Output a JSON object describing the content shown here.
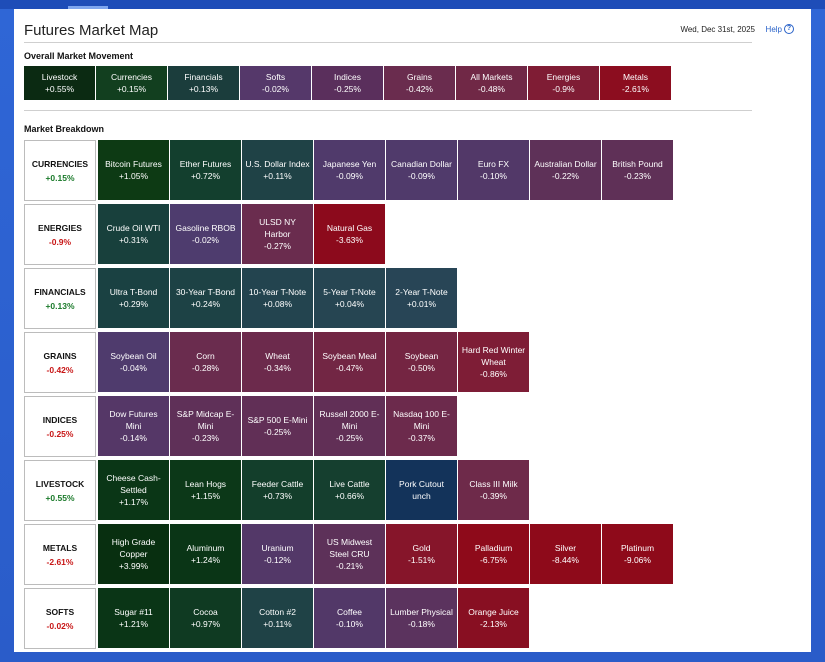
{
  "header": {
    "title": "Futures Market Map",
    "date": "Wed, Dec 31st, 2025",
    "help_label": "Help"
  },
  "overall": {
    "label": "Overall Market Movement",
    "tiles": [
      {
        "name": "Livestock",
        "change": "+0.55%",
        "color": "#0b2a12"
      },
      {
        "name": "Currencies",
        "change": "+0.15%",
        "color": "#123f1f"
      },
      {
        "name": "Financials",
        "change": "+0.13%",
        "color": "#1b3d3c"
      },
      {
        "name": "Softs",
        "change": "-0.02%",
        "color": "#55386a"
      },
      {
        "name": "Indices",
        "change": "-0.25%",
        "color": "#5a2f5c"
      },
      {
        "name": "Grains",
        "change": "-0.42%",
        "color": "#6a2c4e"
      },
      {
        "name": "All Markets",
        "change": "-0.48%",
        "color": "#702846"
      },
      {
        "name": "Energies",
        "change": "-0.9%",
        "color": "#7f1c34"
      },
      {
        "name": "Metals",
        "change": "-2.61%",
        "color": "#8c0d1f"
      }
    ]
  },
  "breakdown": {
    "label": "Market Breakdown",
    "rows": [
      {
        "name": "CURRENCIES",
        "change": "+0.15%",
        "sign": "pos",
        "tiles": [
          {
            "name": "Bitcoin Futures",
            "change": "+1.05%",
            "color": "#0d3a14"
          },
          {
            "name": "Ether Futures",
            "change": "+0.72%",
            "color": "#133f2e"
          },
          {
            "name": "U.S. Dollar Index",
            "change": "+0.11%",
            "color": "#1f4246"
          },
          {
            "name": "Japanese Yen",
            "change": "-0.09%",
            "color": "#503a6b"
          },
          {
            "name": "Canadian Dollar",
            "change": "-0.09%",
            "color": "#503a6b"
          },
          {
            "name": "Euro FX",
            "change": "-0.10%",
            "color": "#523868"
          },
          {
            "name": "Australian Dollar",
            "change": "-0.22%",
            "color": "#5e3158"
          },
          {
            "name": "British Pound",
            "change": "-0.23%",
            "color": "#5f3057"
          }
        ]
      },
      {
        "name": "ENERGIES",
        "change": "-0.9%",
        "sign": "neg",
        "tiles": [
          {
            "name": "Crude Oil WTI",
            "change": "+0.31%",
            "color": "#18403c"
          },
          {
            "name": "Gasoline RBOB",
            "change": "-0.02%",
            "color": "#4e3c6e"
          },
          {
            "name": "ULSD NY Harbor",
            "change": "-0.27%",
            "color": "#6a2c4e"
          },
          {
            "name": "Natural Gas",
            "change": "-3.63%",
            "color": "#8c0a1c"
          }
        ]
      },
      {
        "name": "FINANCIALS",
        "change": "+0.13%",
        "sign": "pos",
        "tiles": [
          {
            "name": "Ultra T-Bond",
            "change": "+0.29%",
            "color": "#1a4142"
          },
          {
            "name": "30-Year T-Bond",
            "change": "+0.24%",
            "color": "#1d4245"
          },
          {
            "name": "10-Year T-Note",
            "change": "+0.08%",
            "color": "#23444f"
          },
          {
            "name": "5-Year T-Note",
            "change": "+0.04%",
            "color": "#264552"
          },
          {
            "name": "2-Year T-Note",
            "change": "+0.01%",
            "color": "#284556"
          }
        ]
      },
      {
        "name": "GRAINS",
        "change": "-0.42%",
        "sign": "neg",
        "tiles": [
          {
            "name": "Soybean Oil",
            "change": "-0.04%",
            "color": "#4f3b6d"
          },
          {
            "name": "Corn",
            "change": "-0.28%",
            "color": "#6a2c4e"
          },
          {
            "name": "Wheat",
            "change": "-0.34%",
            "color": "#6c2a4c"
          },
          {
            "name": "Soybean Meal",
            "change": "-0.47%",
            "color": "#722644"
          },
          {
            "name": "Soybean",
            "change": "-0.50%",
            "color": "#742542"
          },
          {
            "name": "Hard Red Winter Wheat",
            "change": "-0.86%",
            "color": "#7e1d36"
          }
        ]
      },
      {
        "name": "INDICES",
        "change": "-0.25%",
        "sign": "neg",
        "tiles": [
          {
            "name": "Dow Futures Mini",
            "change": "-0.14%",
            "color": "#553767"
          },
          {
            "name": "S&P Midcap E-Mini",
            "change": "-0.23%",
            "color": "#5f3058"
          },
          {
            "name": "S&P 500 E-Mini",
            "change": "-0.25%",
            "color": "#612f56"
          },
          {
            "name": "Russell 2000 E-Mini",
            "change": "-0.25%",
            "color": "#612f56"
          },
          {
            "name": "Nasdaq 100 E-Mini",
            "change": "-0.37%",
            "color": "#6c2a4c"
          }
        ]
      },
      {
        "name": "LIVESTOCK",
        "change": "+0.55%",
        "sign": "pos",
        "tiles": [
          {
            "name": "Cheese Cash-Settled",
            "change": "+1.17%",
            "color": "#0a3616"
          },
          {
            "name": "Lean Hogs",
            "change": "+1.15%",
            "color": "#0c3818"
          },
          {
            "name": "Feeder Cattle",
            "change": "+0.73%",
            "color": "#133e2b"
          },
          {
            "name": "Live Cattle",
            "change": "+0.66%",
            "color": "#153f2f"
          },
          {
            "name": "Pork Cutout",
            "change": "unch",
            "color": "#13335a"
          },
          {
            "name": "Class III Milk",
            "change": "-0.39%",
            "color": "#6e2a4a"
          }
        ]
      },
      {
        "name": "METALS",
        "change": "-2.61%",
        "sign": "neg",
        "tiles": [
          {
            "name": "High Grade Copper",
            "change": "+3.99%",
            "color": "#082f10"
          },
          {
            "name": "Aluminum",
            "change": "+1.24%",
            "color": "#0a3516"
          },
          {
            "name": "Uranium",
            "change": "-0.12%",
            "color": "#533868"
          },
          {
            "name": "US Midwest Steel CRU",
            "change": "-0.21%",
            "color": "#5d3159"
          },
          {
            "name": "Gold",
            "change": "-1.51%",
            "color": "#86152a"
          },
          {
            "name": "Palladium",
            "change": "-6.75%",
            "color": "#8e0a1a"
          },
          {
            "name": "Silver",
            "change": "-8.44%",
            "color": "#8e0a1a"
          },
          {
            "name": "Platinum",
            "change": "-9.06%",
            "color": "#8e0a1a"
          }
        ]
      },
      {
        "name": "SOFTS",
        "change": "-0.02%",
        "sign": "neg",
        "tiles": [
          {
            "name": "Sugar #11",
            "change": "+1.21%",
            "color": "#0a3516"
          },
          {
            "name": "Cocoa",
            "change": "+0.97%",
            "color": "#0f3a22"
          },
          {
            "name": "Cotton #2",
            "change": "+0.11%",
            "color": "#1f4246"
          },
          {
            "name": "Coffee",
            "change": "-0.10%",
            "color": "#523868"
          },
          {
            "name": "Lumber Physical",
            "change": "-0.18%",
            "color": "#5b335e"
          },
          {
            "name": "Orange Juice",
            "change": "-2.13%",
            "color": "#880f22"
          }
        ]
      }
    ]
  }
}
